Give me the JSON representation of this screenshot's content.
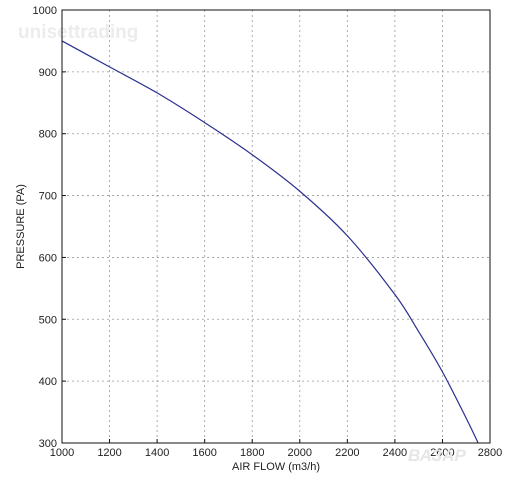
{
  "watermark": "unisettrading",
  "corner_logo": "ВАЗАР",
  "chart_data": {
    "type": "line",
    "title": "",
    "xlabel": "AIR FLOW (m3/h)",
    "ylabel": "PRESSURE (PA)",
    "xlim": [
      1000,
      2800
    ],
    "ylim": [
      300,
      1000
    ],
    "xticks": [
      1000,
      1200,
      1400,
      1600,
      1800,
      2000,
      2200,
      2400,
      2600,
      2800
    ],
    "yticks": [
      300,
      400,
      500,
      600,
      700,
      800,
      900,
      1000
    ],
    "grid": true,
    "line_color": "#2b2f8f",
    "series": [
      {
        "name": "",
        "x": [
          1000,
          1200,
          1400,
          1600,
          1800,
          2000,
          2200,
          2400,
          2500,
          2600,
          2700,
          2750
        ],
        "y": [
          950,
          908,
          866,
          818,
          766,
          707,
          635,
          540,
          480,
          415,
          340,
          300
        ]
      }
    ]
  }
}
